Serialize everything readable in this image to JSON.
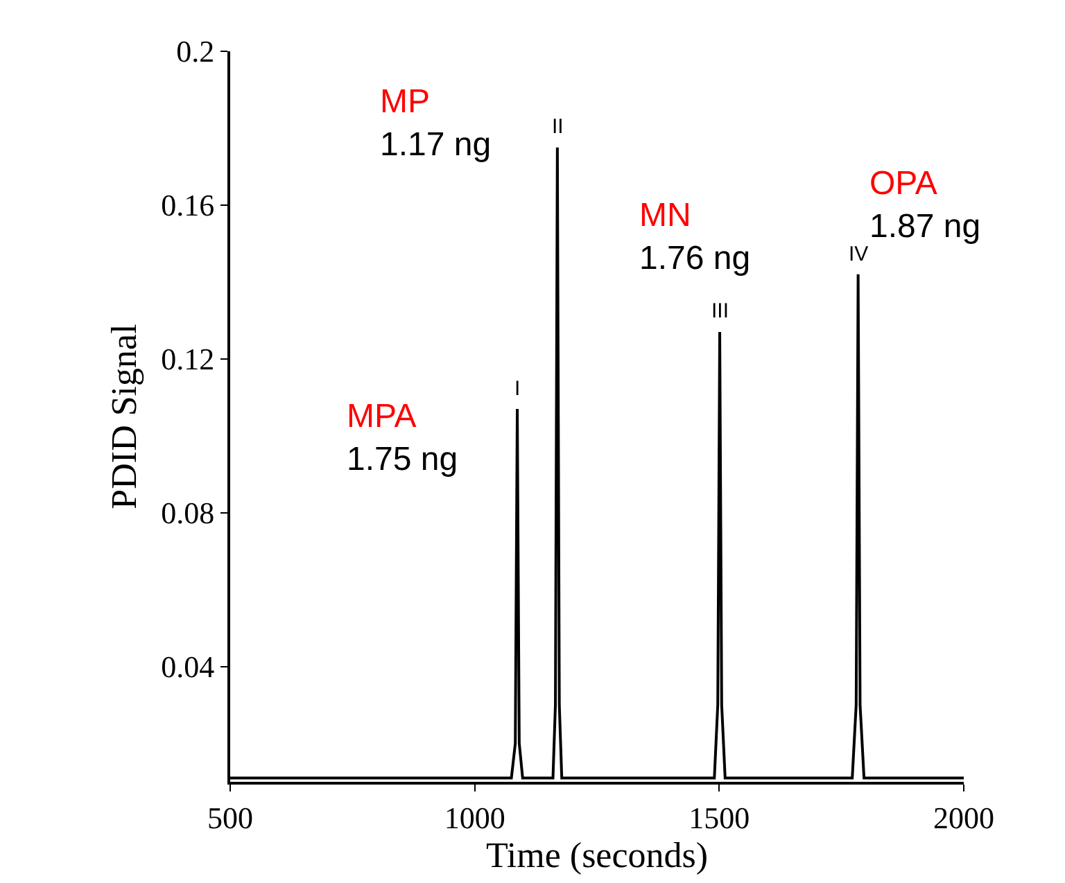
{
  "chart_data": {
    "type": "line",
    "xlabel": "Time (seconds)",
    "ylabel": "PDID Signal",
    "x": [
      500,
      1075,
      1083,
      1087,
      1091,
      1098,
      1160,
      1165,
      1169,
      1173,
      1178,
      1490,
      1497,
      1501,
      1505,
      1512,
      1772,
      1780,
      1784,
      1788,
      1796,
      2000
    ],
    "series": [
      {
        "color": "#000000",
        "values": [
          0.011,
          0.011,
          0.02,
          0.107,
          0.02,
          0.011,
          0.011,
          0.03,
          0.175,
          0.03,
          0.011,
          0.011,
          0.03,
          0.127,
          0.03,
          0.011,
          0.011,
          0.03,
          0.142,
          0.03,
          0.011,
          0.011
        ]
      }
    ],
    "xlim": [
      500,
      2000
    ],
    "ylim": [
      0.01,
      0.2
    ],
    "xticks": [
      500,
      1000,
      1500,
      2000
    ],
    "yticks": [
      0.04,
      0.08,
      0.12,
      0.16,
      0.2
    ],
    "grid": false,
    "marker": "none",
    "line_style": "solid",
    "annotations": [
      {
        "text": "I",
        "x": 1087,
        "y": 0.107
      },
      {
        "text": "II",
        "x": 1169,
        "y": 0.175
      },
      {
        "text": "III",
        "x": 1501,
        "y": 0.127
      },
      {
        "text": "IV",
        "x": 1784,
        "y": 0.142
      },
      "MPA\n1.75 ng",
      "MP\n1.17 ng",
      "MN\n1.76 ng",
      "OPA\n1.87 ng"
    ]
  }
}
